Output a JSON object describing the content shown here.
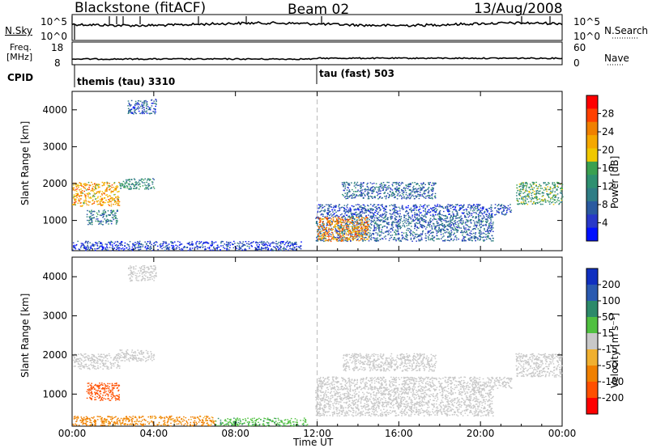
{
  "header": {
    "station": "Blackstone (fitACF)",
    "beam": "Beam 02",
    "date": "13/Aug/2008"
  },
  "summary_panels": {
    "noise": {
      "left_label": "N.Sky",
      "left_ticks": [
        "10^5",
        "10^0"
      ],
      "right_ticks": [
        "10^5",
        "10^0"
      ],
      "right_label": "N.Search"
    },
    "freq": {
      "left_label_line1": "Freq.",
      "left_label_line2": "[MHz]",
      "left_ticks": [
        "18",
        "8"
      ],
      "right_ticks": [
        "60",
        "0"
      ],
      "right_label": "Nave"
    },
    "cpid": {
      "label": "CPID",
      "modes": [
        {
          "name": "themis (tau) 3310",
          "start_hour": 0
        },
        {
          "name": "tau (fast) 503",
          "start_hour": 12
        }
      ]
    }
  },
  "chart_data": [
    {
      "type": "heatmap",
      "quantity": "power",
      "xlabel": "",
      "ylabel": "Slant Range [km]",
      "xlim": [
        0,
        24
      ],
      "ylim": [
        180,
        4500
      ],
      "yticks": [
        1000,
        2000,
        3000,
        4000
      ],
      "colorbar": {
        "label": "Power [dB]",
        "range": [
          0,
          32
        ],
        "ticks": [
          "4",
          "8",
          "12",
          "16",
          "20",
          "24",
          "28"
        ],
        "colors": [
          "#0010ff",
          "#2838c8",
          "#2a5aa0",
          "#2f7d85",
          "#2e9070",
          "#3aa050",
          "#f0c800",
          "#f5a800",
          "#f08000",
          "#ff4000",
          "#ff0000"
        ]
      },
      "regions": [
        {
          "t0": 0.0,
          "t1": 2.3,
          "r0": 1400,
          "r1": 2050,
          "value": 22
        },
        {
          "t0": 2.3,
          "t1": 4.0,
          "r0": 1850,
          "r1": 2150,
          "value": 12
        },
        {
          "t0": 0.7,
          "t1": 2.2,
          "r0": 900,
          "r1": 1300,
          "value": 10
        },
        {
          "t0": 2.7,
          "t1": 4.1,
          "r0": 3900,
          "r1": 4300,
          "value": 6
        },
        {
          "t0": 0.0,
          "t1": 11.2,
          "r0": 200,
          "r1": 450,
          "value": 5
        },
        {
          "t0": 11.9,
          "t1": 20.6,
          "r0": 450,
          "r1": 1150,
          "value": 8
        },
        {
          "t0": 12.0,
          "t1": 14.5,
          "r0": 450,
          "r1": 1100,
          "value": 24
        },
        {
          "t0": 12.0,
          "t1": 21.5,
          "r0": 1150,
          "r1": 1450,
          "value": 6
        },
        {
          "t0": 13.2,
          "t1": 17.8,
          "r0": 1600,
          "r1": 2050,
          "value": 8
        },
        {
          "t0": 21.7,
          "t1": 24.0,
          "r0": 1450,
          "r1": 2050,
          "value": 14
        }
      ]
    },
    {
      "type": "heatmap",
      "quantity": "velocity",
      "xlabel": "Time UT",
      "ylabel": "Slant Range [km]",
      "xlim": [
        0,
        24
      ],
      "ylim": [
        180,
        4500
      ],
      "xticks": [
        "00:00",
        "04:00",
        "08:00",
        "12:00",
        "16:00",
        "20:00",
        "00:00"
      ],
      "yticks": [
        1000,
        2000,
        3000,
        4000
      ],
      "colorbar": {
        "label": "Velocity [m s⁻¹]",
        "ticks": [
          "200",
          "100",
          "50",
          "15",
          "-15",
          "-50",
          "-100",
          "-200"
        ],
        "colors": [
          "#1030c0",
          "#2a5ab0",
          "#2d8a6a",
          "#50c040",
          "#c8c8c8",
          "#f0b030",
          "#f08000",
          "#ff5000",
          "#ff0000"
        ]
      },
      "regions": [
        {
          "t0": 0.0,
          "t1": 2.3,
          "r0": 1650,
          "r1": 2050,
          "value": 0
        },
        {
          "t0": 2.3,
          "t1": 4.0,
          "r0": 1850,
          "r1": 2150,
          "value": 0
        },
        {
          "t0": 0.7,
          "t1": 2.3,
          "r0": 850,
          "r1": 1300,
          "value": -120
        },
        {
          "t0": 2.7,
          "t1": 4.1,
          "r0": 3900,
          "r1": 4300,
          "value": 0
        },
        {
          "t0": 0.0,
          "t1": 7.0,
          "r0": 200,
          "r1": 450,
          "value": -60
        },
        {
          "t0": 7.0,
          "t1": 11.5,
          "r0": 200,
          "r1": 400,
          "value": 40
        },
        {
          "t0": 11.9,
          "t1": 20.6,
          "r0": 450,
          "r1": 1150,
          "value": 0
        },
        {
          "t0": 12.0,
          "t1": 21.5,
          "r0": 1150,
          "r1": 1450,
          "value": 0
        },
        {
          "t0": 13.2,
          "t1": 17.8,
          "r0": 1600,
          "r1": 2050,
          "value": 0
        },
        {
          "t0": 21.7,
          "t1": 24.0,
          "r0": 1450,
          "r1": 2050,
          "value": 0
        }
      ]
    }
  ]
}
